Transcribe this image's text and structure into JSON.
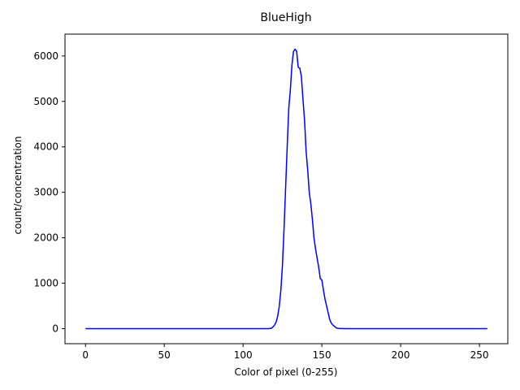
{
  "chart_data": {
    "type": "line",
    "title": "BlueHigh",
    "xlabel": "Color of pixel (0-255)",
    "ylabel": "count/concentration",
    "xlim": [
      -13,
      268
    ],
    "ylim": [
      -330,
      6480
    ],
    "x_ticks": [
      0,
      50,
      100,
      150,
      200,
      250
    ],
    "x_tick_labels": [
      "0",
      "50",
      "100",
      "150",
      "200",
      "250"
    ],
    "y_ticks": [
      0,
      1000,
      2000,
      3000,
      4000,
      5000,
      6000
    ],
    "y_tick_labels": [
      "0",
      "1000",
      "2000",
      "3000",
      "4000",
      "5000",
      "6000"
    ],
    "grid": false,
    "series": [
      {
        "color": "#0000ff",
        "x": [
          0,
          50,
          100,
          116,
          118,
          119,
          120,
          121,
          122,
          123,
          124,
          125,
          126,
          127,
          128,
          129,
          130,
          131,
          132,
          133,
          134,
          135,
          136,
          137,
          138,
          139,
          140,
          141,
          142,
          143,
          144,
          145,
          146,
          147,
          148,
          149,
          150,
          151,
          152,
          153,
          154,
          155,
          156,
          157,
          158,
          159,
          160,
          161,
          162,
          163,
          164,
          170,
          200,
          255
        ],
        "y": [
          0,
          0,
          0,
          0,
          10,
          40,
          80,
          150,
          280,
          500,
          850,
          1400,
          2200,
          3100,
          4000,
          4850,
          5250,
          5800,
          6100,
          6150,
          6100,
          5750,
          5730,
          5550,
          5050,
          4600,
          3900,
          3500,
          3000,
          2750,
          2400,
          2000,
          1750,
          1550,
          1350,
          1100,
          1070,
          850,
          650,
          500,
          350,
          200,
          120,
          80,
          50,
          20,
          10,
          5,
          3,
          2,
          1,
          0,
          0,
          0
        ]
      }
    ]
  }
}
